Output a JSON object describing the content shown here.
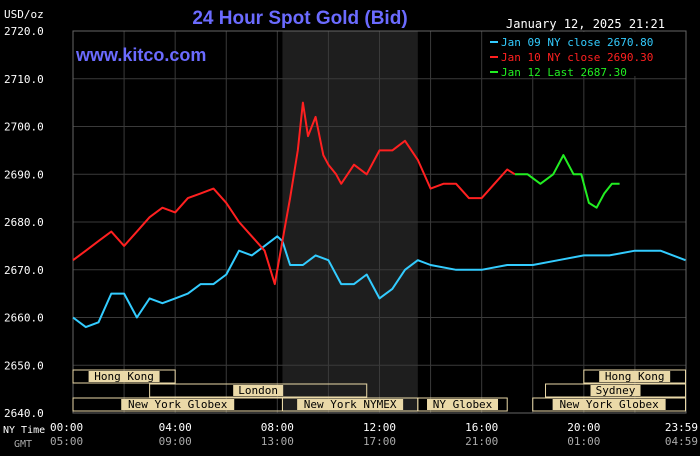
{
  "chart_data": {
    "type": "line",
    "title": "24 Hour Spot Gold (Bid)",
    "site": "www.kitco.com",
    "unit": "USD/oz",
    "datetime": "January 12, 2025 21:21",
    "ylim": [
      2640,
      2720
    ],
    "y_ticks": [
      "2720.0",
      "2710.0",
      "2700.0",
      "2690.0",
      "2680.0",
      "2670.0",
      "2660.0",
      "2650.0",
      "2640.0"
    ],
    "x_ticks_ny": [
      "00:00",
      "04:00",
      "08:00",
      "12:00",
      "16:00",
      "20:00",
      "23:59"
    ],
    "x_ticks_gmt": [
      "05:00",
      "09:00",
      "13:00",
      "17:00",
      "21:00",
      "01:00",
      "04:59"
    ],
    "row_label_ny": "NY Time",
    "row_label_gmt": "GMT",
    "colors": {
      "background": "#000000",
      "grid": "#3a3a3a",
      "axis_text": "#ffffff",
      "title": "#6b6bff",
      "site": "#6b6bff",
      "jan09": "#33ccff",
      "jan10": "#ff2020",
      "jan12": "#22ee22",
      "session_bg": "#ead9a8",
      "session_text": "#000000",
      "shade": "#1e1e1e"
    },
    "legend": [
      {
        "label": "Jan 09 NY close 2670.80",
        "color": "#33ccff"
      },
      {
        "label": "Jan 10 NY close 2690.30",
        "color": "#ff2020"
      },
      {
        "label": "Jan 12 Last 2687.30",
        "color": "#22ee22"
      }
    ],
    "series": [
      {
        "name": "Jan 09",
        "color": "#33ccff",
        "x": [
          0.0,
          0.5,
          1.0,
          1.5,
          2.0,
          2.5,
          3.0,
          3.5,
          4.0,
          4.5,
          5.0,
          5.5,
          6.0,
          6.5,
          7.0,
          7.5,
          8.0,
          8.2,
          8.5,
          9.0,
          9.5,
          10.0,
          10.5,
          11.0,
          11.5,
          12.0,
          12.5,
          13.0,
          13.5,
          14.0,
          15.0,
          16.0,
          17.0,
          18.0,
          19.0,
          20.0,
          21.0,
          22.0,
          23.0,
          23.98
        ],
        "y": [
          2660,
          2658,
          2659,
          2665,
          2665,
          2660,
          2664,
          2663,
          2664,
          2665,
          2667,
          2667,
          2669,
          2674,
          2673,
          2675,
          2677,
          2676,
          2671,
          2671,
          2673,
          2672,
          2667,
          2667,
          2669,
          2664,
          2666,
          2670,
          2672,
          2671,
          2670,
          2670,
          2671,
          2671,
          2672,
          2673,
          2673,
          2674,
          2674,
          2672
        ]
      },
      {
        "name": "Jan 10",
        "color": "#ff2020",
        "x": [
          0.0,
          0.5,
          1.0,
          1.5,
          2.0,
          2.5,
          3.0,
          3.5,
          4.0,
          4.5,
          5.0,
          5.5,
          6.0,
          6.5,
          7.0,
          7.5,
          7.9,
          8.2,
          8.5,
          8.8,
          9.0,
          9.2,
          9.5,
          9.8,
          10.0,
          10.3,
          10.5,
          11.0,
          11.5,
          12.0,
          12.5,
          13.0,
          13.5,
          14.0,
          14.5,
          15.0,
          15.5,
          16.0,
          16.5,
          17.0,
          17.3
        ],
        "y": [
          2672,
          2674,
          2676,
          2678,
          2675,
          2678,
          2681,
          2683,
          2682,
          2685,
          2686,
          2687,
          2684,
          2680,
          2677,
          2674,
          2667,
          2676,
          2685,
          2695,
          2705,
          2698,
          2702,
          2694,
          2692,
          2690,
          2688,
          2692,
          2690,
          2695,
          2695,
          2697,
          2693,
          2687,
          2688,
          2688,
          2685,
          2685,
          2688,
          2691,
          2690
        ]
      },
      {
        "name": "Jan 12",
        "color": "#22ee22",
        "x": [
          17.3,
          17.8,
          18.3,
          18.8,
          19.2,
          19.6,
          19.9,
          20.2,
          20.5,
          20.8,
          21.1,
          21.4
        ],
        "y": [
          2690,
          2690,
          2688,
          2690,
          2694,
          2690,
          2690,
          2684,
          2683,
          2686,
          2688,
          2688
        ]
      }
    ],
    "sessions": [
      {
        "label": "Hong Kong",
        "row": 0,
        "x0": 0.0,
        "x1": 4.0
      },
      {
        "label": "Hong Kong",
        "row": 0,
        "x0": 20.0,
        "x1": 23.98
      },
      {
        "label": "London",
        "row": 1,
        "x0": 3.0,
        "x1": 11.5
      },
      {
        "label": "Sydney",
        "row": 1,
        "x0": 18.5,
        "x1": 23.98
      },
      {
        "label": "New York Globex",
        "row": 2,
        "x0": 0.0,
        "x1": 8.2
      },
      {
        "label": "New York NYMEX",
        "row": 2,
        "x0": 8.2,
        "x1": 13.5
      },
      {
        "label": "NY Globex",
        "row": 2,
        "x0": 13.5,
        "x1": 17.0
      },
      {
        "label": "New York Globex",
        "row": 2,
        "x0": 18.0,
        "x1": 23.98
      }
    ],
    "shaded_region": [
      8.2,
      13.5
    ]
  }
}
